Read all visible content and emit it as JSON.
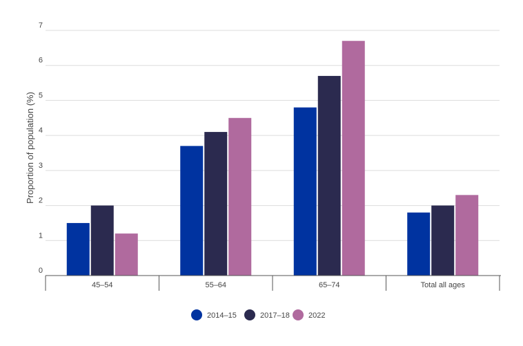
{
  "chart_data": {
    "type": "bar",
    "title": "",
    "xlabel": "",
    "ylabel": "Proportion of population (%)",
    "ylim": [
      0,
      7
    ],
    "yticks": [
      "0",
      "1",
      "2",
      "3",
      "4",
      "5",
      "6",
      "7"
    ],
    "grid": true,
    "legend_position": "bottom-center",
    "categories": [
      "45–54",
      "55–64",
      "65–74",
      "Total all ages"
    ],
    "series": [
      {
        "name": "2014–15",
        "color": "#0033a0",
        "values": [
          1.5,
          3.7,
          4.8,
          1.8
        ]
      },
      {
        "name": "2017–18",
        "color": "#2b2a4f",
        "values": [
          2.0,
          4.1,
          5.7,
          2.0
        ]
      },
      {
        "name": "2022",
        "color": "#b06a9e",
        "values": [
          1.2,
          4.5,
          6.7,
          2.3
        ]
      }
    ]
  }
}
